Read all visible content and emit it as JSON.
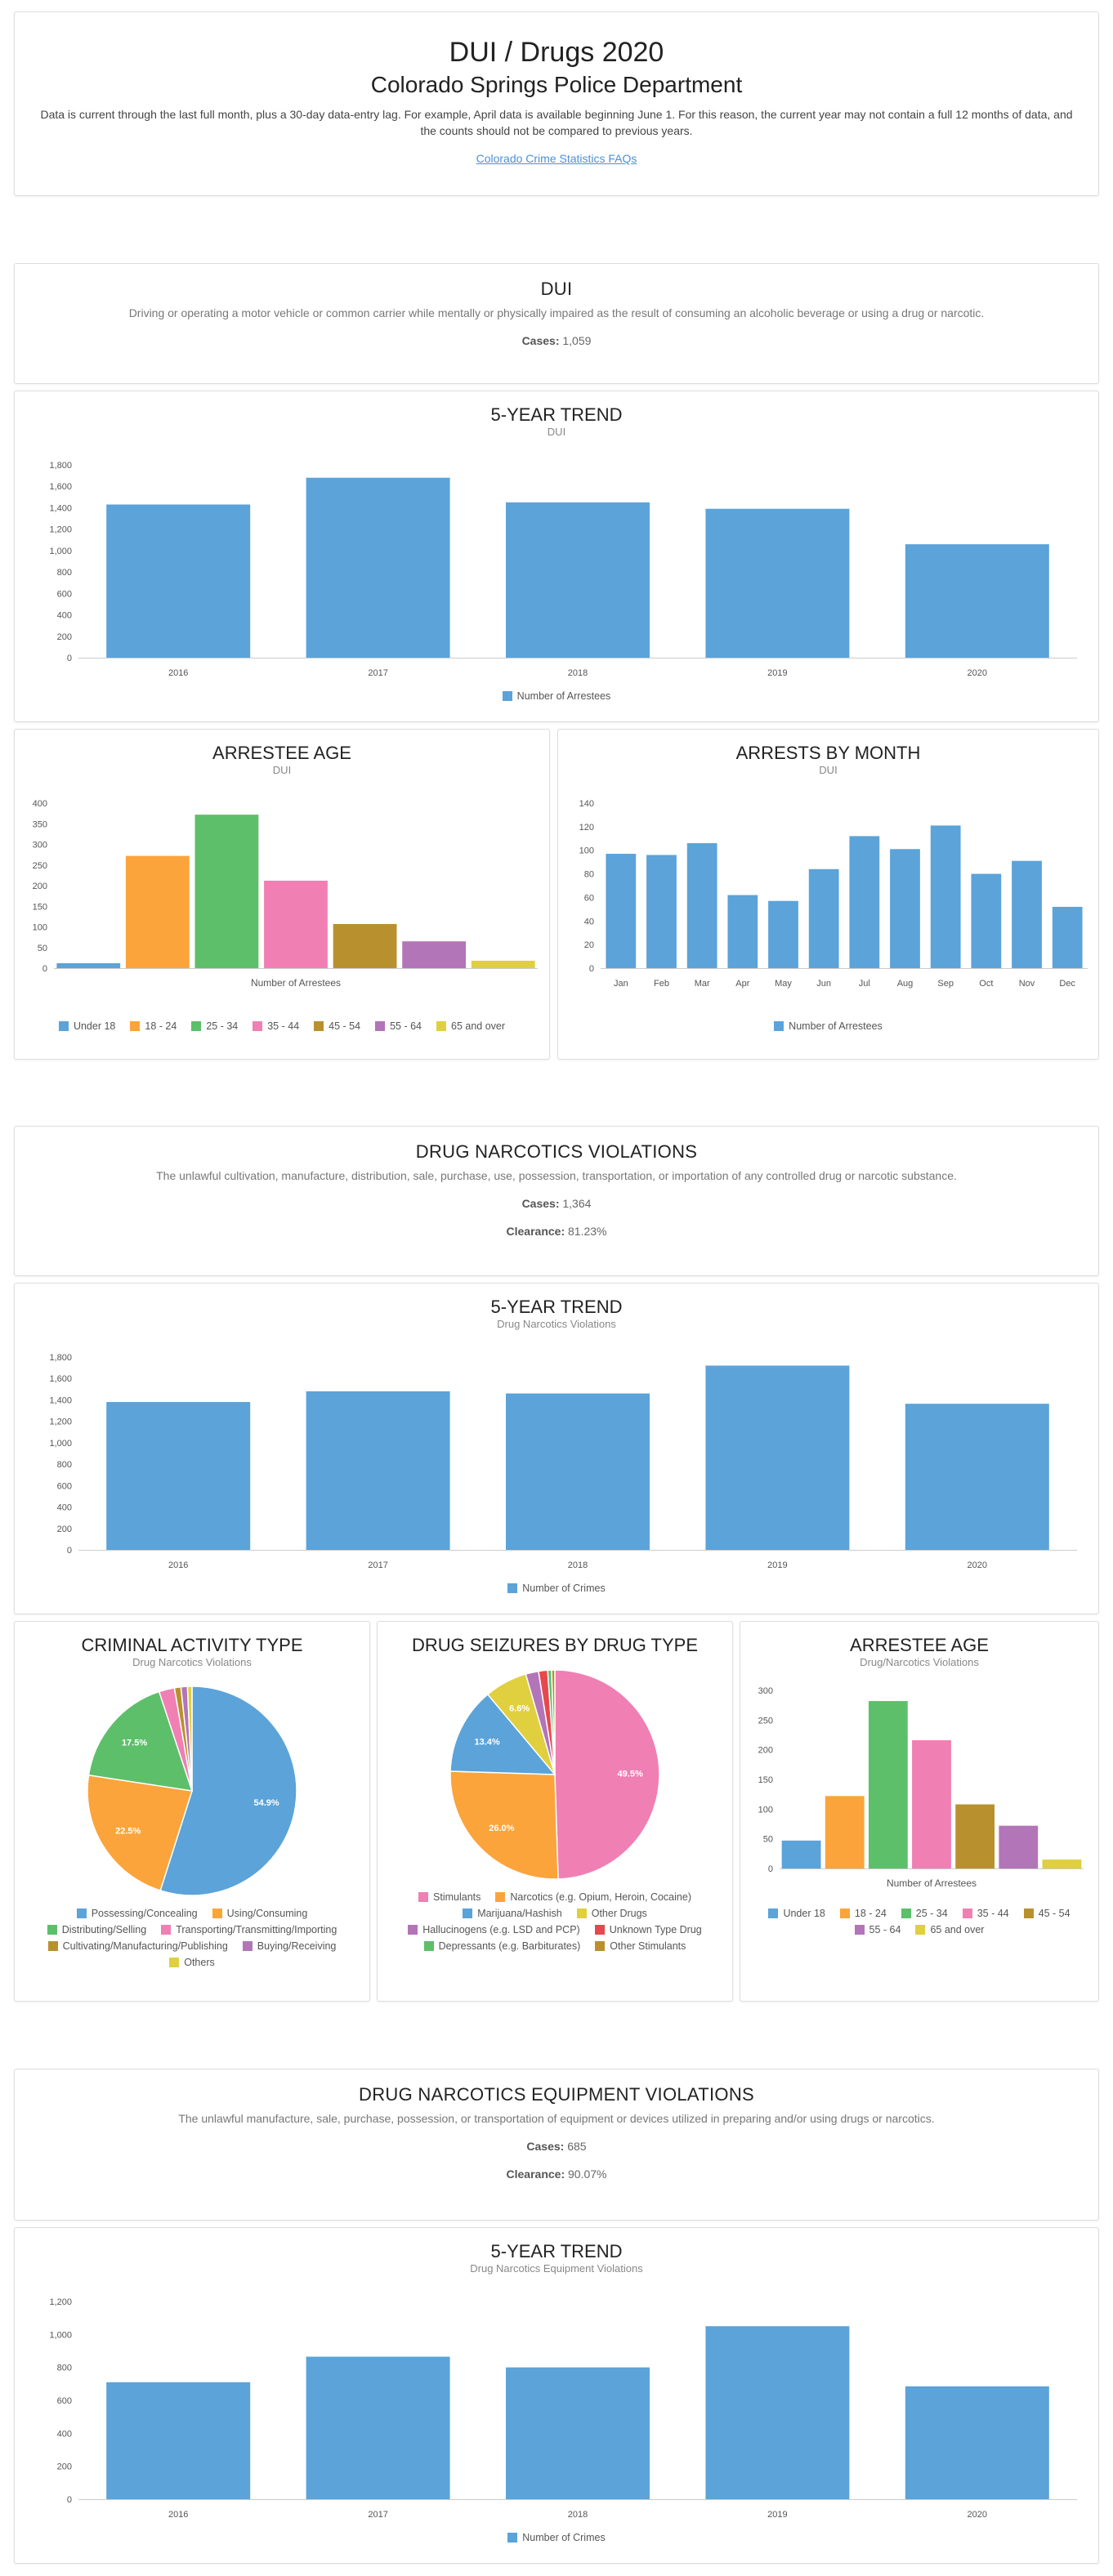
{
  "header": {
    "title": "DUI / Drugs 2020",
    "subtitle": "Colorado Springs Police Department",
    "note": "Data is current through the last full month, plus a 30-day data-entry lag. For example, April data is available beginning June 1. For this reason, the current year may not contain a full 12 months of data, and the counts should not be compared to previous years.",
    "faq_link": "Colorado Crime Statistics FAQs"
  },
  "dui": {
    "title": "DUI",
    "description": "Driving or operating a motor vehicle or common carrier while mentally or physically impaired as the result of consuming an alcoholic beverage or using a drug or narcotic.",
    "cases_label": "Cases:",
    "cases_value": "1,059"
  },
  "drug": {
    "title": "DRUG NARCOTICS VIOLATIONS",
    "description": "The unlawful cultivation, manufacture, distribution, sale, purchase, use, possession, transportation, or importation of any controlled drug or narcotic substance.",
    "cases_label": "Cases:",
    "cases_value": "1,364",
    "clearance_label": "Clearance:",
    "clearance_value": "81.23%"
  },
  "equip": {
    "title": "DRUG NARCOTICS EQUIPMENT VIOLATIONS",
    "description": "The unlawful manufacture, sale, purchase, possession, or transportation of equipment or devices utilized in preparing and/or using drugs or narcotics.",
    "cases_label": "Cases:",
    "cases_value": "685",
    "clearance_label": "Clearance:",
    "clearance_value": "90.07%"
  },
  "colors": {
    "blue": "#5ba3d9",
    "orange": "#fba43b",
    "green": "#5dbf6a",
    "pink": "#f07fb3",
    "olive": "#b8912e",
    "purple": "#b275b8",
    "yellow": "#e0cf3f",
    "red": "#e6494d"
  },
  "chart_data": [
    {
      "id": "dui_trend",
      "type": "bar",
      "title": "5-YEAR TREND",
      "subtitle": "DUI",
      "categories": [
        "2016",
        "2017",
        "2018",
        "2019",
        "2020"
      ],
      "values": [
        1430,
        1680,
        1450,
        1390,
        1059
      ],
      "ylim": [
        0,
        1800
      ],
      "yticks": [
        "0",
        "200",
        "400",
        "600",
        "800",
        "1,000",
        "1,200",
        "1,400",
        "1,600",
        "1,800"
      ],
      "legend": [
        "Number of Arrestees"
      ]
    },
    {
      "id": "dui_age",
      "type": "bar",
      "title": "ARRESTEE AGE",
      "subtitle": "DUI",
      "xlabel": "Number of Arrestees",
      "categories": [
        "Under 18",
        "18 - 24",
        "25 - 34",
        "35 - 44",
        "45 - 54",
        "55 - 64",
        "65 and over"
      ],
      "values": [
        12,
        272,
        372,
        212,
        107,
        65,
        18
      ],
      "ylim": [
        0,
        400
      ],
      "yticks": [
        "0",
        "50",
        "100",
        "150",
        "200",
        "250",
        "300",
        "350",
        "400"
      ],
      "legend": [
        "Under 18",
        "18 - 24",
        "25 - 34",
        "35 - 44",
        "45 - 54",
        "55 - 64",
        "65 and over"
      ]
    },
    {
      "id": "dui_month",
      "type": "bar",
      "title": "ARRESTS BY MONTH",
      "subtitle": "DUI",
      "categories": [
        "Jan",
        "Feb",
        "Mar",
        "Apr",
        "May",
        "Jun",
        "Jul",
        "Aug",
        "Sep",
        "Oct",
        "Nov",
        "Dec"
      ],
      "values": [
        97,
        96,
        106,
        62,
        57,
        84,
        112,
        101,
        121,
        80,
        91,
        52
      ],
      "ylim": [
        0,
        140
      ],
      "yticks": [
        "0",
        "20",
        "40",
        "60",
        "80",
        "100",
        "120",
        "140"
      ],
      "legend": [
        "Number of Arrestees"
      ]
    },
    {
      "id": "drug_trend",
      "type": "bar",
      "title": "5-YEAR TREND",
      "subtitle": "Drug Narcotics Violations",
      "categories": [
        "2016",
        "2017",
        "2018",
        "2019",
        "2020"
      ],
      "values": [
        1380,
        1480,
        1460,
        1720,
        1364
      ],
      "ylim": [
        0,
        1800
      ],
      "yticks": [
        "0",
        "200",
        "400",
        "600",
        "800",
        "1,000",
        "1,200",
        "1,400",
        "1,600",
        "1,800"
      ],
      "legend": [
        "Number of Crimes"
      ]
    },
    {
      "id": "drug_activity",
      "type": "pie",
      "title": "CRIMINAL ACTIVITY TYPE",
      "subtitle": "Drug Narcotics Violations",
      "labels": [
        "Possessing/Concealing",
        "Using/Consuming",
        "Distributing/Selling",
        "Transporting/Transmitting/Importing",
        "Cultivating/Manufacturing/Publishing",
        "Buying/Receiving",
        "Others"
      ],
      "values": [
        54.9,
        22.5,
        17.5,
        2.4,
        1.0,
        1.0,
        0.7
      ],
      "data_labels": [
        "54.9%",
        "22.5%",
        "17.5%",
        "",
        "",
        "",
        ""
      ]
    },
    {
      "id": "drug_seizures",
      "type": "pie",
      "title": "DRUG SEIZURES BY DRUG TYPE",
      "labels": [
        "Stimulants",
        "Narcotics (e.g. Opium, Heroin, Cocaine)",
        "Marijuana/Hashish",
        "Other Drugs",
        "Hallucinogens (e.g. LSD and PCP)",
        "Unknown Type Drug",
        "Depressants (e.g. Barbiturates)",
        "Other Stimulants"
      ],
      "values": [
        49.5,
        26.0,
        13.4,
        6.6,
        2.0,
        1.4,
        0.6,
        0.5
      ],
      "data_labels": [
        "49.5%",
        "26.0%",
        "13.4%",
        "6.6%",
        "",
        "",
        "",
        ""
      ]
    },
    {
      "id": "drug_age",
      "type": "bar",
      "title": "ARRESTEE AGE",
      "subtitle": "Drug/Narcotics Violations",
      "xlabel": "Number of Arrestees",
      "categories": [
        "Under 18",
        "18 - 24",
        "25 - 34",
        "35 - 44",
        "45 - 54",
        "55 - 64",
        "65 and over"
      ],
      "values": [
        47,
        122,
        282,
        216,
        108,
        72,
        15
      ],
      "ylim": [
        0,
        300
      ],
      "yticks": [
        "0",
        "50",
        "100",
        "150",
        "200",
        "250",
        "300"
      ],
      "legend": [
        "Under 18",
        "18 - 24",
        "25 - 34",
        "35 - 44",
        "45 - 54",
        "55 - 64",
        "65 and over"
      ]
    },
    {
      "id": "equip_trend",
      "type": "bar",
      "title": "5-YEAR TREND",
      "subtitle": "Drug Narcotics Equipment Violations",
      "categories": [
        "2016",
        "2017",
        "2018",
        "2019",
        "2020"
      ],
      "values": [
        710,
        865,
        800,
        1050,
        685
      ],
      "ylim": [
        0,
        1200
      ],
      "yticks": [
        "0",
        "200",
        "400",
        "600",
        "800",
        "1,000",
        "1,200"
      ],
      "legend": [
        "Number of Crimes"
      ]
    }
  ]
}
